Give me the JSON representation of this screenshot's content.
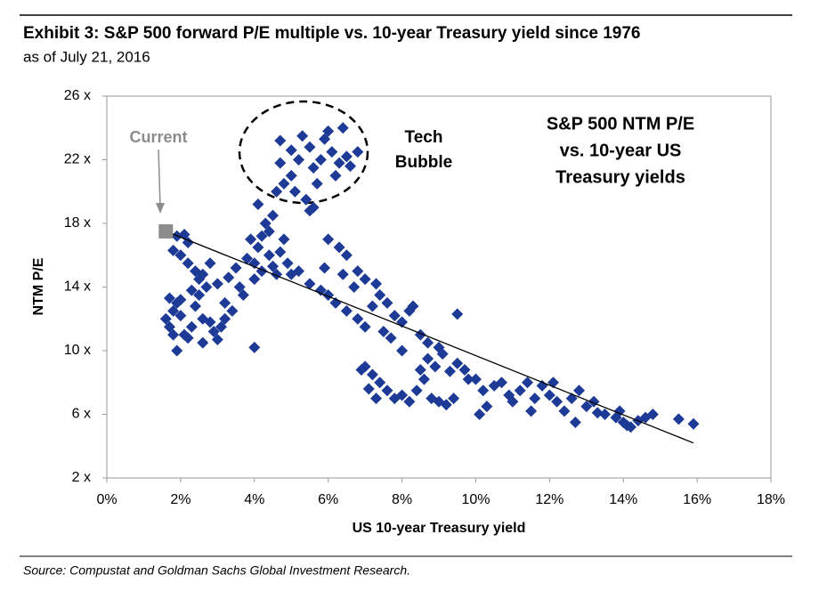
{
  "chart_data": {
    "type": "scatter",
    "title": "Exhibit 3: S&P 500 forward P/E multiple vs. 10-year Treasury yield since 1976",
    "subtitle": "as of July 21, 2016",
    "source": "Source: Compustat and Goldman Sachs Global Investment Research.",
    "xlabel": "US 10-year Treasury yield",
    "ylabel": "NTM P/E",
    "color": "#1c3a96",
    "xlim": [
      0,
      18
    ],
    "ylim": [
      2,
      26
    ],
    "xticks": [
      {
        "value": 0,
        "label": "0%"
      },
      {
        "value": 2,
        "label": "2%"
      },
      {
        "value": 4,
        "label": "4%"
      },
      {
        "value": 6,
        "label": "6%"
      },
      {
        "value": 8,
        "label": "8%"
      },
      {
        "value": 10,
        "label": "10%"
      },
      {
        "value": 12,
        "label": "12%"
      },
      {
        "value": 14,
        "label": "14%"
      },
      {
        "value": 16,
        "label": "16%"
      },
      {
        "value": 18,
        "label": "18%"
      }
    ],
    "yticks": [
      {
        "value": 2,
        "label": "2 x"
      },
      {
        "value": 6,
        "label": "6 x"
      },
      {
        "value": 10,
        "label": "10 x"
      },
      {
        "value": 14,
        "label": "14 x"
      },
      {
        "value": 18,
        "label": "18 x"
      },
      {
        "value": 22,
        "label": "22 x"
      },
      {
        "value": 26,
        "label": "26 x"
      }
    ],
    "x": [
      1.6,
      1.7,
      1.8,
      1.9,
      2.0,
      1.7,
      2.1,
      2.2,
      1.9,
      2.3,
      2.4,
      2.5,
      2.6,
      2.8,
      2.9,
      3.0,
      3.1,
      2.7,
      2.5,
      2.2,
      2.0,
      1.8,
      1.9,
      2.1,
      2.2,
      2.4,
      2.6,
      2.8,
      3.0,
      3.2,
      3.3,
      3.5,
      3.6,
      3.4,
      3.7,
      2.3,
      2.0,
      1.8,
      2.6,
      3.2,
      4.0,
      4.1,
      4.2,
      3.9,
      4.3,
      4.4,
      4.5,
      4.6,
      4.7,
      4.8,
      4.0,
      3.8,
      4.2,
      4.4,
      4.1,
      4.5,
      4.9,
      5.0,
      4.0,
      4.6,
      4.7,
      5.3,
      5.5,
      5.9,
      6.0,
      6.4,
      6.1,
      5.8,
      5.6,
      6.3,
      6.5,
      6.8,
      5.2,
      5.0,
      4.8,
      5.1,
      5.4,
      5.6,
      5.7,
      6.2,
      6.6,
      5.0,
      4.7,
      5.5,
      5.2,
      5.5,
      5.8,
      6.0,
      6.2,
      6.5,
      6.8,
      7.0,
      7.2,
      7.4,
      7.6,
      7.8,
      8.0,
      8.2,
      7.0,
      6.8,
      6.5,
      6.3,
      6.0,
      6.7,
      7.3,
      8.5,
      8.7,
      8.0,
      7.7,
      7.5,
      9.5,
      8.3,
      5.9,
      6.4,
      7.0,
      7.2,
      7.4,
      7.6,
      7.8,
      8.0,
      8.2,
      8.4,
      8.6,
      8.8,
      9.0,
      9.2,
      9.4,
      8.7,
      8.9,
      9.1,
      9.3,
      9.5,
      9.7,
      7.1,
      7.3,
      6.9,
      8.5,
      9.0,
      9.8,
      10.0,
      10.2,
      10.3,
      10.5,
      10.7,
      10.9,
      11.0,
      11.2,
      11.4,
      11.6,
      11.8,
      12.0,
      12.2,
      12.4,
      12.6,
      12.8,
      13.0,
      12.1,
      11.5,
      10.1,
      12.7,
      13.2,
      13.5,
      13.8,
      14.0,
      14.2,
      14.4,
      14.6,
      14.8,
      13.9,
      14.1,
      15.5,
      15.9,
      13.3
    ],
    "values": [
      12.0,
      11.5,
      12.5,
      13.0,
      12.2,
      13.3,
      11.0,
      10.8,
      10.0,
      11.5,
      12.8,
      13.5,
      12.0,
      11.8,
      11.2,
      10.7,
      11.5,
      14.0,
      14.5,
      15.5,
      16.0,
      16.3,
      17.2,
      17.3,
      16.8,
      15.0,
      14.8,
      15.5,
      14.2,
      13.0,
      14.6,
      15.2,
      14.0,
      12.5,
      13.5,
      13.8,
      13.2,
      11.0,
      10.5,
      12.0,
      15.5,
      16.5,
      17.2,
      17.0,
      18.0,
      16.0,
      15.3,
      14.8,
      16.2,
      17.0,
      14.5,
      15.8,
      15.0,
      17.5,
      19.2,
      18.5,
      15.5,
      14.8,
      10.2,
      20.0,
      23.2,
      23.5,
      22.8,
      23.3,
      23.8,
      24.0,
      22.5,
      22.0,
      21.5,
      21.8,
      22.2,
      22.5,
      22.0,
      21.0,
      20.5,
      20.0,
      19.5,
      19.0,
      20.5,
      21.0,
      21.6,
      22.6,
      21.8,
      18.8,
      15.0,
      14.2,
      13.8,
      13.5,
      13.0,
      12.5,
      12.0,
      11.5,
      12.8,
      13.5,
      13.0,
      12.2,
      11.8,
      12.5,
      14.5,
      15.0,
      16.0,
      16.5,
      17.0,
      14.0,
      14.2,
      11.0,
      10.5,
      10.0,
      10.8,
      11.2,
      12.3,
      12.8,
      15.2,
      14.8,
      9.0,
      8.5,
      8.0,
      7.5,
      7.0,
      7.2,
      6.8,
      7.5,
      8.2,
      7.0,
      6.8,
      6.6,
      7.0,
      9.5,
      9.0,
      9.8,
      8.7,
      9.2,
      8.8,
      7.6,
      7.0,
      8.8,
      8.8,
      10.2,
      8.2,
      8.2,
      7.5,
      6.5,
      7.8,
      8.0,
      7.2,
      6.8,
      7.5,
      8.0,
      7.0,
      7.8,
      7.2,
      6.8,
      6.2,
      7.0,
      7.5,
      6.5,
      8.0,
      6.2,
      6.0,
      5.5,
      6.8,
      6.0,
      5.8,
      5.5,
      5.2,
      5.6,
      5.8,
      6.0,
      6.2,
      5.3,
      5.7,
      5.4,
      6.1
    ],
    "trendline": {
      "x": [
        1.5,
        15.9
      ],
      "y": [
        17.6,
        4.2
      ],
      "color": "#000000"
    },
    "current": {
      "label": "Current",
      "x": 1.6,
      "y": 17.5,
      "color": "#8c8c8c"
    },
    "bubble_label": [
      "Tech",
      "Bubble"
    ],
    "box_text": [
      "S&P 500 NTM P/E",
      "vs. 10-year US",
      "Treasury yields"
    ]
  }
}
